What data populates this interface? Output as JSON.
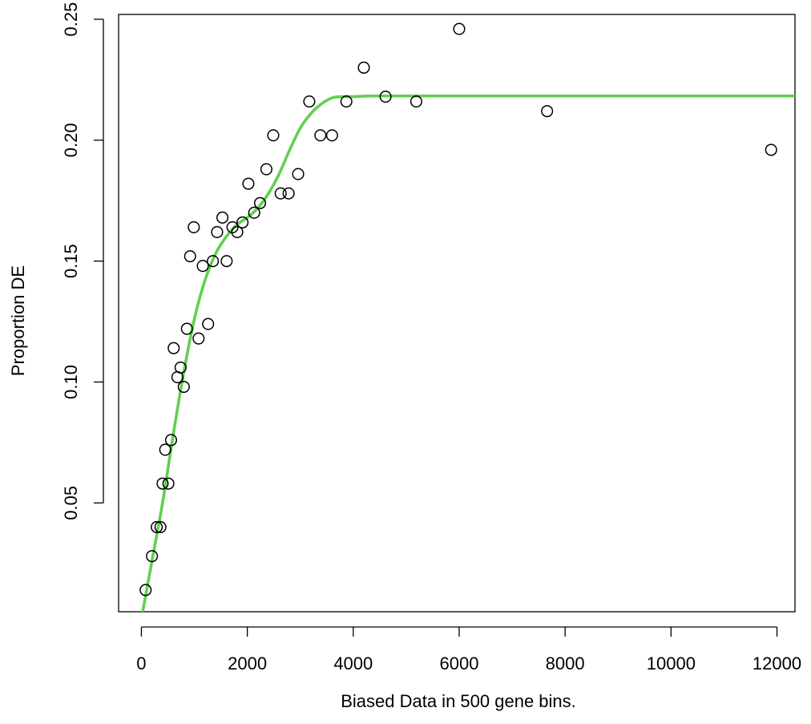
{
  "chart_data": {
    "type": "scatter",
    "title": "",
    "xlabel": "Biased Data in 500 gene bins.",
    "ylabel": "Proportion DE",
    "xlim": [
      -430,
      12340
    ],
    "ylim": [
      0.005,
      0.252
    ],
    "x_ticks": [
      "0",
      "2000",
      "4000",
      "6000",
      "8000",
      "10000",
      "12000"
    ],
    "x_tick_values": [
      0,
      2000,
      4000,
      6000,
      8000,
      10000,
      12000
    ],
    "y_ticks": [
      "0.05",
      "0.10",
      "0.15",
      "0.20",
      "0.25"
    ],
    "y_tick_values": [
      0.05,
      0.1,
      0.15,
      0.2,
      0.25
    ],
    "grid": false,
    "points": {
      "x": [
        80,
        200,
        290,
        360,
        400,
        450,
        510,
        560,
        610,
        680,
        740,
        800,
        860,
        920,
        990,
        1080,
        1160,
        1260,
        1350,
        1430,
        1530,
        1610,
        1720,
        1810,
        1910,
        2020,
        2130,
        2240,
        2360,
        2490,
        2630,
        2780,
        2960,
        3170,
        3380,
        3600,
        3870,
        4200,
        4610,
        5190,
        6000,
        7660,
        11890
      ],
      "y": [
        0.014,
        0.028,
        0.04,
        0.04,
        0.058,
        0.072,
        0.058,
        0.076,
        0.114,
        0.102,
        0.106,
        0.098,
        0.122,
        0.152,
        0.164,
        0.118,
        0.148,
        0.124,
        0.15,
        0.162,
        0.168,
        0.15,
        0.164,
        0.162,
        0.166,
        0.182,
        0.17,
        0.174,
        0.188,
        0.202,
        0.178,
        0.178,
        0.186,
        0.216,
        0.202,
        0.202,
        0.216,
        0.23,
        0.218,
        0.216,
        0.246,
        0.212,
        0.196
      ]
    },
    "fit_line": {
      "color": "#61d04f",
      "x": [
        0,
        200,
        400,
        600,
        800,
        1000,
        1200,
        1400,
        1600,
        1800,
        2000,
        2200,
        2400,
        2600,
        2800,
        3000,
        3200,
        3400,
        3600,
        3800,
        4000,
        4200,
        4400,
        4600,
        5000,
        6000,
        8000,
        10000,
        12340
      ],
      "y": [
        0.002,
        0.026,
        0.05,
        0.078,
        0.104,
        0.126,
        0.142,
        0.153,
        0.16,
        0.165,
        0.168,
        0.172,
        0.178,
        0.186,
        0.196,
        0.205,
        0.211,
        0.215,
        0.2175,
        0.218,
        0.218,
        0.2182,
        0.2183,
        0.2183,
        0.2183,
        0.2183,
        0.2183,
        0.2183,
        0.2183
      ]
    },
    "point_style": "open-circle"
  }
}
